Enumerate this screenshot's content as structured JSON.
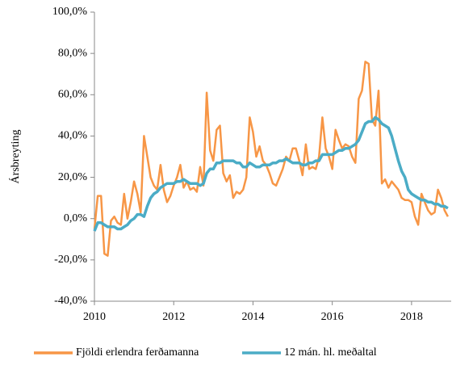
{
  "chart_data": {
    "type": "line",
    "y_label": "Ársbreyting",
    "x": [
      2010,
      2010.083,
      2010.167,
      2010.25,
      2010.333,
      2010.417,
      2010.5,
      2010.583,
      2010.667,
      2010.75,
      2010.833,
      2010.917,
      2011,
      2011.083,
      2011.167,
      2011.25,
      2011.333,
      2011.417,
      2011.5,
      2011.583,
      2011.667,
      2011.75,
      2011.833,
      2011.917,
      2012,
      2012.083,
      2012.167,
      2012.25,
      2012.333,
      2012.417,
      2012.5,
      2012.583,
      2012.667,
      2012.75,
      2012.833,
      2012.917,
      2013,
      2013.083,
      2013.167,
      2013.25,
      2013.333,
      2013.417,
      2013.5,
      2013.583,
      2013.667,
      2013.75,
      2013.833,
      2013.917,
      2014,
      2014.083,
      2014.167,
      2014.25,
      2014.333,
      2014.417,
      2014.5,
      2014.583,
      2014.667,
      2014.75,
      2014.833,
      2014.917,
      2015,
      2015.083,
      2015.167,
      2015.25,
      2015.333,
      2015.417,
      2015.5,
      2015.583,
      2015.667,
      2015.75,
      2015.833,
      2015.917,
      2016,
      2016.083,
      2016.167,
      2016.25,
      2016.333,
      2016.417,
      2016.5,
      2016.583,
      2016.667,
      2016.75,
      2016.833,
      2016.917,
      2017,
      2017.083,
      2017.167,
      2017.25,
      2017.333,
      2017.417,
      2017.5,
      2017.583,
      2017.667,
      2017.75,
      2017.833,
      2017.917,
      2018,
      2018.083,
      2018.167,
      2018.25,
      2018.333,
      2018.417,
      2018.5,
      2018.583,
      2018.667,
      2018.75,
      2018.833,
      2018.917
    ],
    "series": [
      {
        "name": "Fjöldi erlendra ferðamanna",
        "color": "#f79646",
        "values": [
          -5,
          11,
          11,
          -17,
          -18,
          -1,
          1,
          -2,
          -3,
          12,
          0,
          8,
          18,
          12,
          3,
          40,
          30,
          20,
          16,
          14,
          26,
          14,
          8,
          11,
          16,
          20,
          26,
          15,
          18,
          14,
          15,
          13,
          25,
          16,
          61,
          33,
          28,
          43,
          45,
          22,
          18,
          21,
          10,
          13,
          12,
          14,
          20,
          49,
          42,
          30,
          35,
          28,
          26,
          22,
          17,
          16,
          20,
          24,
          30,
          28,
          34,
          34,
          28,
          21,
          36,
          24,
          25,
          24,
          30,
          49,
          34,
          30,
          24,
          43,
          38,
          34,
          36,
          35,
          30,
          27,
          58,
          62,
          76,
          75,
          48,
          45,
          62,
          17,
          19,
          15,
          18,
          16,
          14,
          10,
          9,
          9,
          8,
          1,
          -3,
          12,
          8,
          4,
          2,
          3,
          14,
          10,
          4,
          1
        ]
      },
      {
        "name": "12 mán. hl. meðaltal",
        "color": "#4bacc6",
        "values": [
          -6,
          -2,
          -2,
          -3,
          -4,
          -4,
          -4,
          -5,
          -5,
          -4,
          -3,
          -1,
          0,
          2,
          2,
          1,
          6,
          10,
          12,
          13,
          15,
          16,
          17,
          17,
          17,
          18,
          18,
          19,
          18,
          17,
          17,
          17,
          16,
          17,
          22,
          24,
          24,
          27,
          27,
          28,
          28,
          28,
          28,
          27,
          27,
          25,
          25,
          27,
          26,
          25,
          25,
          26,
          26,
          26,
          27,
          27,
          28,
          28,
          29,
          28,
          27,
          27,
          27,
          26,
          26,
          27,
          27,
          28,
          28,
          31,
          31,
          31,
          31,
          32,
          33,
          33,
          34,
          34,
          35,
          36,
          38,
          42,
          46,
          47,
          47,
          49,
          48,
          46,
          45,
          44,
          40,
          34,
          28,
          23,
          20,
          14,
          12,
          11,
          10,
          9,
          9,
          8,
          8,
          7,
          7,
          6,
          6,
          5
        ]
      }
    ],
    "xlim": [
      2010,
      2019
    ],
    "xticks": [
      2010,
      2012,
      2014,
      2016,
      2018
    ],
    "ylim": [
      -40,
      100
    ],
    "yticks": [
      {
        "value": -40,
        "label": "-40,0%"
      },
      {
        "value": -20,
        "label": "-20,0%"
      },
      {
        "value": 0,
        "label": "0,0%"
      },
      {
        "value": 20,
        "label": "20,0%"
      },
      {
        "value": 40,
        "label": "40,0%"
      },
      {
        "value": 60,
        "label": "60,0%"
      },
      {
        "value": 80,
        "label": "80,0%"
      },
      {
        "value": 100,
        "label": "100,0%"
      }
    ],
    "grid": false,
    "legend": "bottom"
  }
}
